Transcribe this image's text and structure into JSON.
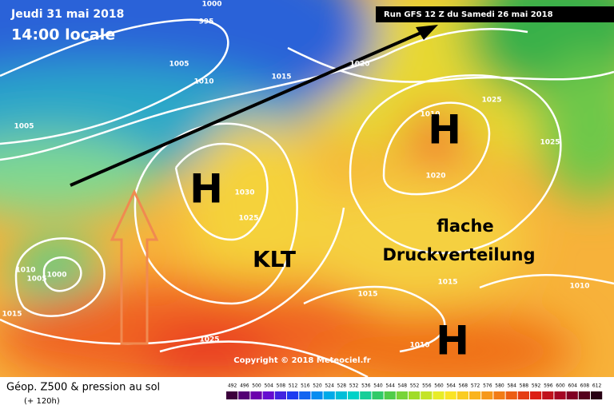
{
  "header": {
    "date": "Jeudi 31 mai 2018",
    "time": "14:00 locale",
    "run": "Run GFS 12 Z du Samedi 26 mai 2018"
  },
  "isobar_labels": [
    "1000",
    "995",
    "1005",
    "1010",
    "1015",
    "1020",
    "1005",
    "1010",
    "1025",
    "1025",
    "1030",
    "1025",
    "1020",
    "1010",
    "1005",
    "1000",
    "1015",
    "1015",
    "1015",
    "1025",
    "1010",
    "1010"
  ],
  "pressure_centers": [
    "H",
    "H",
    "H",
    "KLT"
  ],
  "annotation": [
    "flache",
    "Druckverteilung"
  ],
  "copyright": "Copyright © 2018 Meteociel.fr",
  "legend": {
    "title": "Géop. Z500 & pression au sol",
    "subtitle": "(+ 120h)",
    "scale": [
      492,
      496,
      500,
      504,
      508,
      512,
      516,
      520,
      524,
      528,
      532,
      536,
      540,
      544,
      548,
      552,
      556,
      560,
      564,
      568,
      572,
      576,
      580,
      584,
      588,
      592,
      596,
      600,
      604,
      608,
      612
    ]
  }
}
